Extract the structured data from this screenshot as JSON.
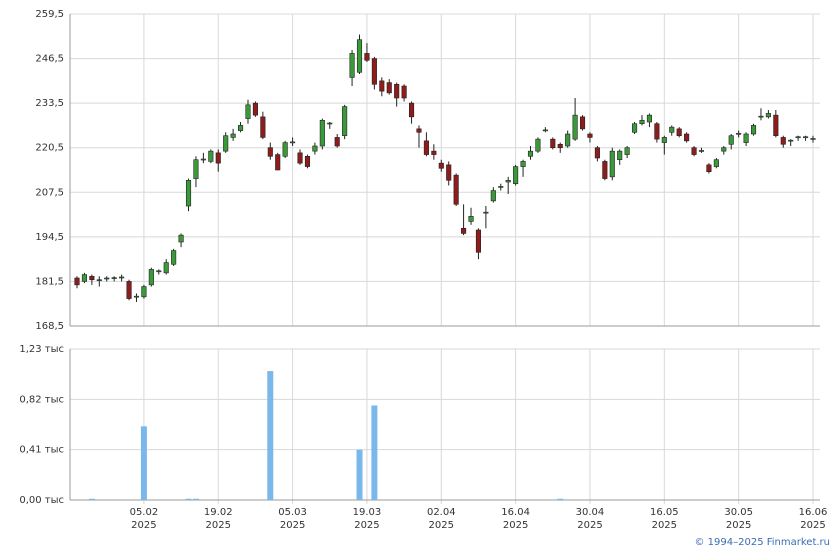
{
  "chart_data": {
    "type": "candlestick",
    "x": [
      "23.01.2025",
      "24.01.2025",
      "27.01.2025",
      "28.01.2025",
      "29.01.2025",
      "30.01.2025",
      "31.01.2025",
      "03.02.2025",
      "04.02.2025",
      "05.02.2025",
      "06.02.2025",
      "07.02.2025",
      "10.02.2025",
      "11.02.2025",
      "12.02.2025",
      "13.02.2025",
      "14.02.2025",
      "17.02.2025",
      "18.02.2025",
      "19.02.2025",
      "20.02.2025",
      "21.02.2025",
      "24.02.2025",
      "25.02.2025",
      "26.02.2025",
      "27.02.2025",
      "28.02.2025",
      "03.03.2025",
      "04.03.2025",
      "05.03.2025",
      "06.03.2025",
      "07.03.2025",
      "10.03.2025",
      "11.03.2025",
      "12.03.2025",
      "13.03.2025",
      "14.03.2025",
      "17.03.2025",
      "18.03.2025",
      "19.03.2025",
      "20.03.2025",
      "21.03.2025",
      "24.03.2025",
      "25.03.2025",
      "26.03.2025",
      "27.03.2025",
      "28.03.2025",
      "31.03.2025",
      "01.04.2025",
      "02.04.2025",
      "03.04.2025",
      "04.04.2025",
      "07.04.2025",
      "08.04.2025",
      "09.04.2025",
      "10.04.2025",
      "11.04.2025",
      "14.04.2025",
      "15.04.2025",
      "16.04.2025",
      "17.04.2025",
      "18.04.2025",
      "21.04.2025",
      "22.04.2025",
      "23.04.2025",
      "24.04.2025",
      "25.04.2025",
      "28.04.2025",
      "29.04.2025",
      "30.04.2025",
      "02.05.2025",
      "05.05.2025",
      "06.05.2025",
      "07.05.2025",
      "08.05.2025",
      "12.05.2025",
      "13.05.2025",
      "14.05.2025",
      "15.05.2025",
      "16.05.2025",
      "19.05.2025",
      "20.05.2025",
      "21.05.2025",
      "22.05.2025",
      "23.05.2025",
      "26.05.2025",
      "27.05.2025",
      "28.05.2025",
      "29.05.2025",
      "30.05.2025",
      "02.06.2025",
      "03.06.2025",
      "04.06.2025",
      "05.06.2025",
      "06.06.2025",
      "09.06.2025",
      "10.06.2025",
      "11.06.2025",
      "13.06.2025",
      "16.06.2025"
    ],
    "open": [
      182.5,
      181.5,
      183,
      182,
      182.5,
      182.5,
      182.7,
      181.5,
      177,
      177,
      180.5,
      184.5,
      184,
      186.5,
      193,
      203.5,
      211.5,
      217,
      216.5,
      219,
      219.5,
      223.5,
      225.5,
      229,
      233.5,
      229.5,
      220.5,
      218.5,
      218,
      222,
      219,
      218,
      219.5,
      221,
      227.5,
      223.5,
      224,
      241,
      242.5,
      248,
      246.5,
      240,
      239.5,
      239,
      238.5,
      233.5,
      226,
      222.5,
      219.5,
      216,
      215.5,
      212.5,
      197,
      199,
      196.5,
      201.5,
      205,
      209,
      210.5,
      210,
      215,
      218,
      219.5,
      225.5,
      223,
      221.5,
      221,
      223,
      229.5,
      224.5,
      220.5,
      216.5,
      212,
      217,
      218.5,
      225,
      227.5,
      228,
      227.5,
      222,
      225,
      226,
      224.5,
      220.5,
      219.5,
      215.5,
      215,
      219.5,
      221.5,
      224.5,
      222,
      224.5,
      229.5,
      229.5,
      230,
      223.5,
      222.5,
      223.5,
      223.5,
      223
    ],
    "high": [
      183,
      184,
      183.5,
      183,
      183,
      183,
      183.5,
      182,
      178,
      180.5,
      185.5,
      185,
      188,
      191,
      195.5,
      211.5,
      218,
      219,
      220,
      220,
      225,
      226,
      228,
      234.5,
      234,
      231,
      222,
      219,
      222.5,
      223.5,
      220,
      218.5,
      222,
      229,
      228,
      224.5,
      233,
      249,
      253.5,
      251,
      247,
      241,
      240.5,
      239.5,
      239,
      234,
      227,
      225,
      221.5,
      217,
      216.5,
      213,
      204,
      203,
      197,
      203.5,
      209,
      210,
      212,
      215.5,
      217,
      221,
      223.5,
      226.5,
      223.5,
      222,
      225.5,
      235,
      230,
      225,
      221,
      217,
      220.5,
      220,
      221,
      228,
      230,
      230.5,
      228,
      224,
      227,
      226.5,
      225,
      221,
      220.5,
      216,
      217.5,
      221,
      224.5,
      225.5,
      225,
      227.5,
      232,
      231.5,
      231.5,
      224,
      223,
      224,
      224,
      224
    ],
    "low": [
      179.5,
      181,
      180.5,
      180,
      181.5,
      181.5,
      181.5,
      176,
      175.5,
      176.5,
      180,
      183.5,
      183.5,
      186,
      191.5,
      202,
      209,
      216,
      216,
      213.5,
      219,
      222.5,
      225,
      227.5,
      229.5,
      223,
      217,
      214,
      217.5,
      221,
      215.5,
      214.5,
      218.5,
      220,
      226,
      220.5,
      223,
      238.5,
      242,
      245.5,
      237.5,
      235.5,
      236,
      232.5,
      234,
      227.5,
      220.5,
      218,
      217,
      213.5,
      209.5,
      203.5,
      195,
      198,
      188,
      197,
      204.5,
      208,
      207,
      209.5,
      212,
      217,
      219,
      225,
      220,
      219,
      220.5,
      222.5,
      225.5,
      222,
      216.5,
      211,
      211,
      215.5,
      217.5,
      224.5,
      227,
      226.5,
      222,
      218.5,
      224,
      223.5,
      222,
      218,
      219,
      213,
      214.5,
      218.5,
      220,
      223.5,
      221,
      224,
      228.5,
      229,
      223.5,
      220.5,
      221,
      222.5,
      222.5,
      222
    ],
    "close": [
      180.5,
      183.5,
      182,
      182,
      182.5,
      182.6,
      182.8,
      176.5,
      177.2,
      180,
      185,
      184.6,
      187,
      190.5,
      195,
      211,
      217,
      217.2,
      219.5,
      216,
      224,
      224.5,
      227,
      233,
      230,
      223.5,
      218,
      214,
      222,
      222.2,
      216,
      215,
      221,
      228.5,
      227.7,
      221,
      232.5,
      248,
      252,
      246,
      239,
      237,
      236.5,
      235,
      235,
      229.5,
      225,
      218.5,
      218.5,
      214.5,
      211,
      204,
      195.5,
      200.5,
      190,
      201.7,
      208,
      209.2,
      211,
      215,
      216.5,
      219.5,
      223,
      225.7,
      220.5,
      220.5,
      224.5,
      230,
      226,
      223.5,
      217.5,
      211.5,
      219.5,
      219.5,
      220.5,
      227.5,
      228.5,
      230,
      223,
      223.5,
      226.5,
      224,
      222.5,
      218.5,
      219.7,
      213.5,
      217,
      220.5,
      224,
      224.7,
      224.5,
      227,
      229.7,
      230.5,
      224,
      221.5,
      222.7,
      223.7,
      223.7,
      223.2
    ],
    "up_color": "#3a9a3a",
    "down_color": "#8e1c1c",
    "ylim": [
      168.5,
      259.5
    ],
    "yticks": [
      {
        "value": 168.5,
        "label": "168,5"
      },
      {
        "value": 181.5,
        "label": "181,5"
      },
      {
        "value": 194.5,
        "label": "194,5"
      },
      {
        "value": 207.5,
        "label": "207,5"
      },
      {
        "value": 220.5,
        "label": "220,5"
      },
      {
        "value": 233.5,
        "label": "233,5"
      },
      {
        "value": 246.5,
        "label": "246,5"
      },
      {
        "value": 259.5,
        "label": "259,5"
      }
    ],
    "xticks": [
      {
        "value": "05.02.2025",
        "label": [
          "05.02",
          "2025"
        ]
      },
      {
        "value": "19.02.2025",
        "label": [
          "19.02",
          "2025"
        ]
      },
      {
        "value": "05.03.2025",
        "label": [
          "05.03",
          "2025"
        ]
      },
      {
        "value": "19.03.2025",
        "label": [
          "19.03",
          "2025"
        ]
      },
      {
        "value": "02.04.2025",
        "label": [
          "02.04",
          "2025"
        ]
      },
      {
        "value": "16.04.2025",
        "label": [
          "16.04",
          "2025"
        ]
      },
      {
        "value": "30.04.2025",
        "label": [
          "30.04",
          "2025"
        ]
      },
      {
        "value": "16.05.2025",
        "label": [
          "16.05",
          "2025"
        ]
      },
      {
        "value": "30.05.2025",
        "label": [
          "30.05",
          "2025"
        ]
      },
      {
        "value": "16.06.2025",
        "label": [
          "16.06",
          "2025"
        ]
      }
    ],
    "grid": true,
    "volume": {
      "values": [
        0,
        0,
        0.01,
        0,
        0,
        0,
        0,
        0,
        0,
        0.6,
        0,
        0,
        0,
        0,
        0,
        0.01,
        0.01,
        0,
        0,
        0,
        0,
        0,
        0,
        0,
        0,
        0,
        1.05,
        0,
        0,
        0,
        0,
        0,
        0,
        0,
        0,
        0,
        0,
        0,
        0.41,
        0,
        0.77,
        0,
        0,
        0,
        0,
        0,
        0,
        0,
        0,
        0,
        0,
        0,
        0,
        0,
        0,
        0,
        0,
        0,
        0,
        0,
        0,
        0,
        0,
        0,
        0,
        0.01,
        0,
        0,
        0,
        0,
        0,
        0,
        0,
        0,
        0,
        0,
        0,
        0,
        0,
        0,
        0,
        0,
        0,
        0,
        0,
        0,
        0,
        0,
        0,
        0,
        0,
        0,
        0,
        0,
        0,
        0,
        0,
        0,
        0,
        0
      ],
      "color": "#7ab8ec",
      "ylim": [
        0,
        1.23
      ],
      "yticks": [
        {
          "value": 0,
          "label": "0,00 тыс"
        },
        {
          "value": 0.41,
          "label": "0,41 тыс"
        },
        {
          "value": 0.82,
          "label": "0,82 тыс"
        },
        {
          "value": 1.23,
          "label": "1,23 тыс"
        }
      ]
    }
  },
  "footer": "© 1994–2025 Finmarket.ru"
}
